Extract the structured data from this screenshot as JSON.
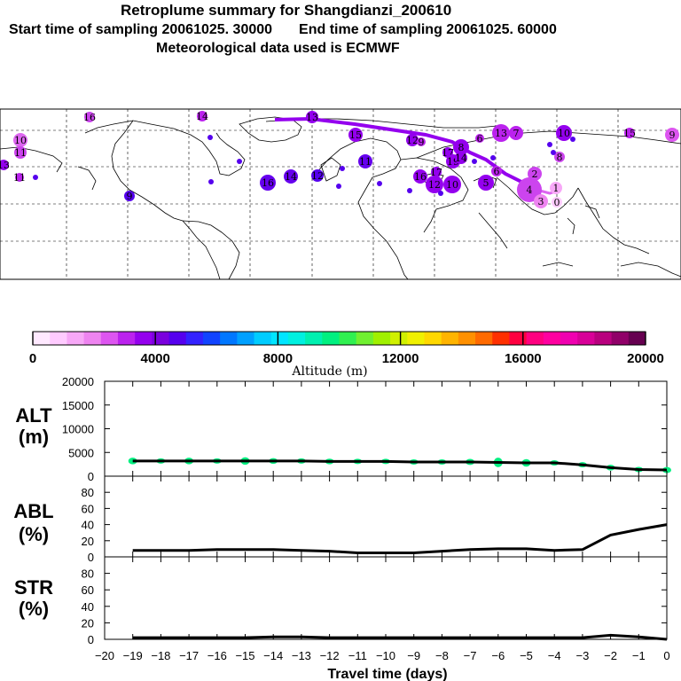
{
  "title": "Retroplume summary for Shangdianzi_200610",
  "start_label": "Start time of sampling 20061025. 30000",
  "end_label": "End time of sampling 20061025. 60000",
  "met_label": "Meteorological data used is ECMWF",
  "colorbar": {
    "title": "Altitude (m)",
    "ticks": [
      "0",
      "4000",
      "8000",
      "12000",
      "16000",
      "20000"
    ],
    "colors": [
      "#ffe9ff",
      "#ffcbff",
      "#f7a8f7",
      "#ee84f0",
      "#dd55f0",
      "#bb22ee",
      "#9400ee",
      "#7a00dd",
      "#5500ee",
      "#3322ff",
      "#1144ff",
      "#0077ff",
      "#00a0ff",
      "#00ccff",
      "#00e5ff",
      "#00f0e0",
      "#00f0b0",
      "#00f080",
      "#30f050",
      "#70f030",
      "#a0f000",
      "#d0f000",
      "#f0f000",
      "#ffd800",
      "#ffb400",
      "#ff9000",
      "#ff6a00",
      "#ff3000",
      "#ff0040",
      "#ff0080",
      "#ff00a0",
      "#f000b0",
      "#d80098",
      "#b8007e",
      "#900068",
      "#660050"
    ]
  },
  "map_markers": [
    {
      "label": "16",
      "color": "#cc44ee"
    },
    {
      "label": "14",
      "color": "#bb22ee"
    },
    {
      "label": "10",
      "color": "#dd66f0"
    },
    {
      "label": "11",
      "color": "#cc44ee"
    },
    {
      "label": "13",
      "color": "#9400ee"
    },
    {
      "label": "9",
      "color": "#5500ee"
    },
    {
      "label": "16",
      "color": "#6600ee"
    },
    {
      "label": "14",
      "color": "#6600ee"
    },
    {
      "label": "12",
      "color": "#5500ee"
    },
    {
      "label": "11",
      "color": "#6600ee"
    },
    {
      "label": "15",
      "color": "#9400ee"
    },
    {
      "label": "13",
      "color": "#9400ee"
    },
    {
      "label": "12",
      "color": "#9400ee"
    },
    {
      "label": "9",
      "color": "#bb22ee"
    },
    {
      "label": "8",
      "color": "#9400ee"
    },
    {
      "label": "17",
      "color": "#9400ee"
    },
    {
      "label": "19",
      "color": "#9400ee"
    },
    {
      "label": "6",
      "color": "#bb22ee"
    },
    {
      "label": "13",
      "color": "#bb22ee"
    },
    {
      "label": "7",
      "color": "#bb22ee"
    },
    {
      "label": "10",
      "color": "#9400ee"
    },
    {
      "label": "15",
      "color": "#bb22ee"
    },
    {
      "label": "8",
      "color": "#cc44ee"
    },
    {
      "label": "9",
      "color": "#dd55f0"
    },
    {
      "label": "11",
      "color": "#bb22ee"
    },
    {
      "label": "16",
      "color": "#9400ee"
    },
    {
      "label": "17",
      "color": "#9400ee"
    },
    {
      "label": "14",
      "color": "#9400ee"
    },
    {
      "label": "12",
      "color": "#9400ee"
    },
    {
      "label": "10",
      "color": "#9400ee"
    },
    {
      "label": "5",
      "color": "#9400ee"
    },
    {
      "label": "6",
      "color": "#bb22ee"
    },
    {
      "label": "2",
      "color": "#cc44ee"
    },
    {
      "label": "4",
      "color": "#cc44ee"
    },
    {
      "label": "3",
      "color": "#ee84f0"
    },
    {
      "label": "1",
      "color": "#f7a8f7"
    },
    {
      "label": "0",
      "color": "#ffcbff"
    }
  ],
  "chart_data": [
    {
      "type": "scatter",
      "panel": "ALT",
      "ylabel": "ALT (m)",
      "ylim": [
        0,
        20000
      ],
      "yticks": [
        0,
        5000,
        10000,
        15000,
        20000
      ],
      "xlim": [
        -20,
        0
      ],
      "x": [
        -19,
        -18,
        -17,
        -16,
        -15,
        -14,
        -13,
        -12,
        -11,
        -10,
        -9,
        -8,
        -7,
        -6,
        -5,
        -4,
        -3,
        -2,
        -1,
        0
      ],
      "median": [
        3200,
        3200,
        3200,
        3200,
        3200,
        3200,
        3200,
        3100,
        3100,
        3100,
        3000,
        3000,
        3000,
        2900,
        2800,
        2800,
        2400,
        1800,
        1400,
        1300
      ],
      "spread": [
        1400,
        1000,
        1400,
        1000,
        1600,
        1200,
        1000,
        1200,
        1000,
        1100,
        1000,
        1000,
        1300,
        2000,
        1600,
        1000,
        1100,
        1200,
        800,
        1300
      ],
      "point_color": "#00f080"
    },
    {
      "type": "line",
      "panel": "ABL",
      "ylabel": "ABL (%)",
      "ylim": [
        0,
        100
      ],
      "yticks": [
        0,
        20,
        40,
        60,
        80
      ],
      "x": [
        -19,
        -18,
        -17,
        -16,
        -15,
        -14,
        -13,
        -12,
        -11,
        -10,
        -9,
        -8,
        -7,
        -6,
        -5,
        -4,
        -3,
        -2,
        -1,
        0
      ],
      "values": [
        8,
        8,
        8,
        9,
        9,
        9,
        8,
        7,
        5,
        5,
        5,
        7,
        9,
        10,
        10,
        8,
        9,
        27,
        34,
        40
      ]
    },
    {
      "type": "line",
      "panel": "STR",
      "ylabel": "STR (%)",
      "ylim": [
        0,
        100
      ],
      "yticks": [
        0,
        20,
        40,
        60,
        80
      ],
      "x": [
        -19,
        -18,
        -17,
        -16,
        -15,
        -14,
        -13,
        -12,
        -11,
        -10,
        -9,
        -8,
        -7,
        -6,
        -5,
        -4,
        -3,
        -2,
        -1,
        0
      ],
      "values": [
        2,
        2,
        2,
        2,
        2,
        3,
        3,
        2,
        2,
        2,
        2,
        2,
        2,
        2,
        2,
        2,
        2,
        5,
        3,
        0
      ],
      "xlabel": "Travel time (days)",
      "xticks": [
        -20,
        -19,
        -18,
        -17,
        -16,
        -15,
        -14,
        -13,
        -12,
        -11,
        -10,
        -9,
        -8,
        -7,
        -6,
        -5,
        -4,
        -3,
        -2,
        -1,
        0
      ]
    }
  ],
  "panel_labels": {
    "alt_top": "ALT",
    "alt_bottom": "(m)",
    "abl_top": "ABL",
    "abl_bottom": "(%)",
    "str_top": "STR",
    "str_bottom": "(%)"
  }
}
